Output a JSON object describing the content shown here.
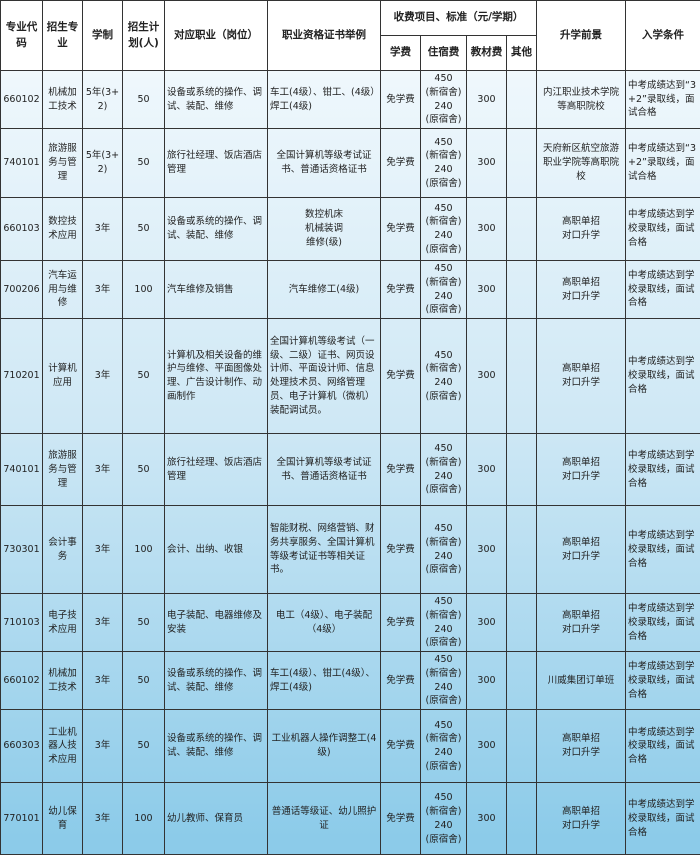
{
  "headers": {
    "code": "专业代码",
    "major": "招生专业",
    "duration": "学制",
    "plan": "招生计划(人)",
    "job": "对应职业（岗位）",
    "cert": "职业资格证书举例",
    "fees": "收费项目、标准（元/学期）",
    "tuition": "学费",
    "lodging": "住宿费",
    "books": "教材费",
    "other": "其他",
    "prospect": "升学前景",
    "condition": "入学条件"
  },
  "rows": [
    {
      "code": "660102",
      "major": "机械加工技术",
      "duration": "5年(3+2)",
      "plan": "50",
      "job": "设备或系统的操作、调试、装配、维修",
      "cert": "车工(4级）、钳工、(4级）焊工(4级)",
      "tuition": "免学费",
      "lodging": "450\n(新宿舍)\n240\n(原宿舍)",
      "books": "300",
      "other": "",
      "prospect": "内江职业技术学院等高职院校",
      "condition": "中考成绩达到“3+2”录取线，面试合格"
    },
    {
      "code": "740101",
      "major": "旅游服务与管理",
      "duration": "5年(3+2)",
      "plan": "50",
      "job": "旅行社经理、饭店酒店管理",
      "cert": "全国计算机等级考试证书、普通话资格证书",
      "tuition": "免学费",
      "lodging": "450\n(新宿舍)\n240\n(原宿舍)",
      "books": "300",
      "other": "",
      "prospect": "天府新区航空旅游职业学院等高职院校",
      "condition": "中考成绩达到“3+2”录取线，面试合格"
    },
    {
      "code": "660103",
      "major": "数控技术应用",
      "duration": "3年",
      "plan": "50",
      "job": "设备或系统的操作、调试、装配、维修",
      "cert": "数控机床\n机械装调\n维修(级)",
      "tuition": "免学费",
      "lodging": "450\n(新宿舍)\n240\n(原宿舍)",
      "books": "300",
      "other": "",
      "prospect": "高职单招\n对口升学",
      "condition": "中考成绩达到学校录取线，面试合格"
    },
    {
      "code": "700206",
      "major": "汽车运用与维修",
      "duration": "3年",
      "plan": "100",
      "job": "汽车维修及销售",
      "cert": "汽车维修工(4级)",
      "tuition": "免学费",
      "lodging": "450\n(新宿舍)\n240\n(原宿舍)",
      "books": "300",
      "other": "",
      "prospect": "高职单招\n对口升学",
      "condition": "中考成绩达到学校录取线，面试合格"
    },
    {
      "code": "710201",
      "major": "计算机应用",
      "duration": "3年",
      "plan": "50",
      "job": "计算机及相关设备的维护与维修、平面图像处理、广告设计制作、动画制作",
      "cert": "全国计算机等级考试（一级、二级）证书、网页设计师、平面设计师、信息处理技术员、网络管理员、电子计算机（微机）装配调试员。",
      "tuition": "免学费",
      "lodging": "450\n(新宿舍)\n240\n(原宿舍)",
      "books": "300",
      "other": "",
      "prospect": "高职单招\n对口升学",
      "condition": "中考成绩达到学校录取线，面试合格"
    },
    {
      "code": "740101",
      "major": "旅游服务与管理",
      "duration": "3年",
      "plan": "50",
      "job": "旅行社经理、饭店酒店管理",
      "cert": "全国计算机等级考试证书、普通话资格证书",
      "tuition": "免学费",
      "lodging": "450\n(新宿舍)\n240\n(原宿舍)",
      "books": "300",
      "other": "",
      "prospect": "高职单招\n对口升学",
      "condition": "中考成绩达到学校录取线，面试合格"
    },
    {
      "code": "730301",
      "major": "会计事务",
      "duration": "3年",
      "plan": "100",
      "job": "会计、出纳、收银",
      "cert": "智能财税、网络营销、财务共享服务、全国计算机等级考试证书等相关证书。",
      "tuition": "免学费",
      "lodging": "450\n(新宿舍)\n240\n(原宿舍)",
      "books": "300",
      "other": "",
      "prospect": "高职单招\n对口升学",
      "condition": "中考成绩达到学校录取线，面试合格"
    },
    {
      "code": "710103",
      "major": "电子技术应用",
      "duration": "3年",
      "plan": "50",
      "job": "电子装配、电器维修及安装",
      "cert": "电工（4级）、电子装配（4级）",
      "tuition": "免学费",
      "lodging": "450\n(新宿舍)\n240\n(原宿舍)",
      "books": "300",
      "other": "",
      "prospect": "高职单招\n对口升学",
      "condition": "中考成绩达到学校录取线，面试合格"
    },
    {
      "code": "660102",
      "major": "机械加工技术",
      "duration": "3年",
      "plan": "50",
      "job": "设备或系统的操作、调试、装配、维修",
      "cert": "车工(4级）、钳工(4级）、焊工(4级)",
      "tuition": "免学费",
      "lodging": "450\n(新宿舍)\n240\n(原宿舍)",
      "books": "300",
      "other": "",
      "prospect": "川威集团订单班",
      "condition": "中考成绩达到学校录取线，面试合格"
    },
    {
      "code": "660303",
      "major": "工业机器人技术应用",
      "duration": "3年",
      "plan": "50",
      "job": "设备或系统的操作、调试、装配、维修",
      "cert": "工业机器人操作调整工(4级)",
      "tuition": "免学费",
      "lodging": "450\n(新宿舍)\n240\n(原宿舍)",
      "books": "300",
      "other": "",
      "prospect": "高职单招\n对口升学",
      "condition": "中考成绩达到学校录取线，面试合格"
    },
    {
      "code": "770101",
      "major": "幼儿保育",
      "duration": "3年",
      "plan": "100",
      "job": "幼儿教师、保育员",
      "cert": "普通话等级证、幼儿照护证",
      "tuition": "免学费",
      "lodging": "450\n(新宿舍)\n240\n(原宿舍)",
      "books": "300",
      "other": "",
      "prospect": "高职单招\n对口升学",
      "condition": "中考成绩达到学校录取线，面试合格"
    }
  ]
}
